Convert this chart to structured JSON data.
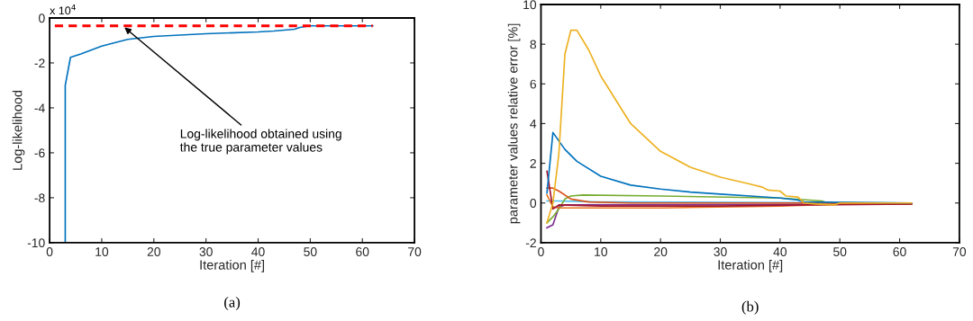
{
  "chart_data": [
    {
      "type": "line",
      "title": "(a)",
      "xlabel": "Iteration [#]",
      "ylabel": "Log-likelihood",
      "xlim": [
        0,
        70
      ],
      "ylim": [
        -10,
        0
      ],
      "xticks": [
        0,
        10,
        20,
        30,
        40,
        50,
        60,
        70
      ],
      "yticks": [
        -10,
        -8,
        -6,
        -4,
        -2,
        0
      ],
      "grid": false,
      "legend": false,
      "annotations": [
        "x 10$^{4}$",
        {
          "text": "Log-likelihood obtained using\nthe true parameter values",
          "x": 14,
          "y": -0.35
        }
      ],
      "series": [
        {
          "color": "#0072bd",
          "x": [
            3,
            3,
            4,
            6,
            10,
            15,
            20,
            30,
            40,
            43,
            47,
            48,
            50,
            62
          ],
          "values": [
            -10,
            -3.0,
            -1.75,
            -1.6,
            -1.25,
            -0.95,
            -0.82,
            -0.7,
            -0.62,
            -0.58,
            -0.5,
            -0.42,
            -0.35,
            -0.35
          ]
        },
        {
          "color": "#ff0000",
          "line_style": "dashed",
          "x": [
            1,
            62
          ],
          "values": [
            -0.35,
            -0.35
          ]
        }
      ]
    },
    {
      "type": "line",
      "title": "(b)",
      "xlabel": "Iteration [#]",
      "ylabel": "parameter values relative error [%]",
      "xlim": [
        0,
        70
      ],
      "ylim": [
        -2,
        10
      ],
      "xticks": [
        0,
        10,
        20,
        30,
        40,
        50,
        60,
        70
      ],
      "yticks": [
        -2,
        0,
        2,
        4,
        6,
        8,
        10
      ],
      "grid": false,
      "legend": false,
      "series": [
        {
          "color": "#4dbeee",
          "x": [
            1,
            3,
            10,
            62
          ],
          "values": [
            0.1,
            0.1,
            0.05,
            0
          ]
        },
        {
          "color": "#7e2f8e",
          "x": [
            1,
            2,
            3,
            4,
            62
          ],
          "values": [
            -1.25,
            -1.1,
            -0.2,
            -0.1,
            -0.05
          ]
        },
        {
          "color": "#77ac30",
          "x": [
            1,
            2,
            3,
            4,
            5,
            7,
            20,
            40,
            47,
            48,
            62
          ],
          "values": [
            -1.0,
            -0.7,
            -0.3,
            0.2,
            0.35,
            0.4,
            0.35,
            0.25,
            0.1,
            0,
            0
          ]
        },
        {
          "color": "#d95319",
          "x": [
            1,
            2,
            3,
            5,
            8,
            15,
            62
          ],
          "values": [
            0.75,
            0.75,
            0.6,
            0.2,
            0.05,
            0,
            0
          ]
        },
        {
          "color": "#e8731e",
          "x": [
            1,
            2,
            3,
            20,
            40,
            50,
            62
          ],
          "values": [
            0.4,
            -0.2,
            -0.25,
            -0.25,
            -0.15,
            -0.05,
            -0.05
          ]
        },
        {
          "color": "#a2142f",
          "x": [
            1,
            2,
            3,
            10,
            30,
            45,
            62
          ],
          "values": [
            1.6,
            -0.3,
            -0.1,
            -0.15,
            -0.15,
            -0.1,
            -0.05
          ]
        },
        {
          "color": "#0072bd",
          "x": [
            1,
            2,
            4,
            6,
            10,
            15,
            20,
            25,
            30,
            35,
            40,
            43,
            44,
            62
          ],
          "values": [
            0.5,
            3.55,
            2.7,
            2.1,
            1.35,
            0.9,
            0.7,
            0.55,
            0.45,
            0.35,
            0.25,
            0.15,
            0.05,
            0
          ]
        },
        {
          "color": "#edb120",
          "x": [
            1,
            2,
            3,
            4,
            5,
            6,
            8,
            10,
            15,
            20,
            25,
            30,
            35,
            37,
            38,
            40,
            41,
            43,
            44,
            46,
            49,
            50,
            62
          ],
          "values": [
            -1.0,
            0,
            2.5,
            7.5,
            8.7,
            8.7,
            7.7,
            6.4,
            4.0,
            2.6,
            1.8,
            1.3,
            0.95,
            0.8,
            0.65,
            0.6,
            0.35,
            0.3,
            0.0,
            -0.05,
            -0.1,
            0,
            0
          ]
        }
      ]
    }
  ]
}
